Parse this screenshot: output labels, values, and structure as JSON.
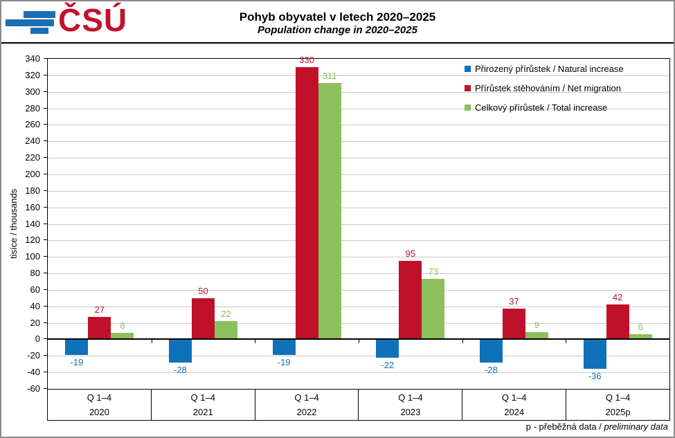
{
  "header": {
    "logo_text": "ČSÚ",
    "title": "Pohyb obyvatel v letech 2020–2025",
    "subtitle": "Population change in 2020–2025"
  },
  "chart_data": {
    "type": "bar",
    "title": "Pohyb obyvatel v letech 2020–2025",
    "subtitle": "Population change in 2020–2025",
    "ylabel": "tisíce / thousands",
    "ylim": [
      -60,
      340
    ],
    "ytick_step": 20,
    "grid": true,
    "legend_position": "top-right",
    "quarter_label": "Q 1–4",
    "categories": [
      "2020",
      "2021",
      "2022",
      "2023",
      "2024",
      "2025p"
    ],
    "series": [
      {
        "name": "Přirozený přírůstek / Natural increase",
        "color": "#0f72b8",
        "values": [
          -19,
          -28,
          -19,
          -22,
          -28,
          -36
        ]
      },
      {
        "name": "Přírůstek stěhováním / Net migration",
        "color": "#c0112b",
        "values": [
          27,
          50,
          330,
          95,
          37,
          42
        ]
      },
      {
        "name": "Celkový přírůstek / Total increase",
        "color": "#8cc05c",
        "values": [
          8,
          22,
          311,
          73,
          9,
          6
        ]
      }
    ]
  },
  "footer": {
    "note_normal": "p - přeběžná data / ",
    "note_italic": "preliminary data"
  },
  "colors": {
    "logo_blue": "#1c6fb4",
    "logo_red": "#c2112b",
    "gridline": "#c9c9c9",
    "axis": "#000000"
  }
}
